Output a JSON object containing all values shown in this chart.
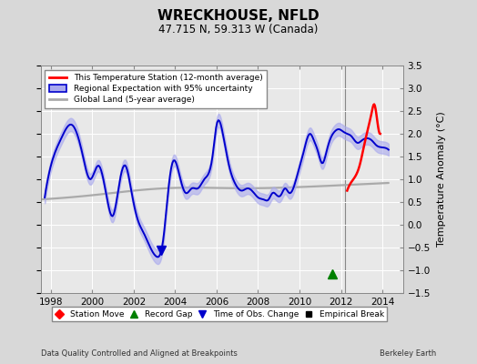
{
  "title": "WRECKHOUSE, NFLD",
  "subtitle": "47.715 N, 59.313 W (Canada)",
  "ylabel": "Temperature Anomaly (°C)",
  "footer_left": "Data Quality Controlled and Aligned at Breakpoints",
  "footer_right": "Berkeley Earth",
  "xlim": [
    1997.5,
    2015.0
  ],
  "ylim": [
    -1.5,
    3.5
  ],
  "yticks": [
    -1.5,
    -1.0,
    -0.5,
    0.0,
    0.5,
    1.0,
    1.5,
    2.0,
    2.5,
    3.0,
    3.5
  ],
  "xticks": [
    1998,
    2000,
    2002,
    2004,
    2006,
    2008,
    2010,
    2012,
    2014
  ],
  "bg_color": "#d8d8d8",
  "plot_bg": "#e8e8e8",
  "blue_line_color": "#0000cc",
  "blue_fill_color": "#aaaaee",
  "red_line_color": "#ff0000",
  "gray_line_color": "#aaaaaa",
  "record_gap_x": 2011.6,
  "record_gap_y": -1.08,
  "obs_change_x": 2003.3,
  "obs_change_y": -0.55
}
